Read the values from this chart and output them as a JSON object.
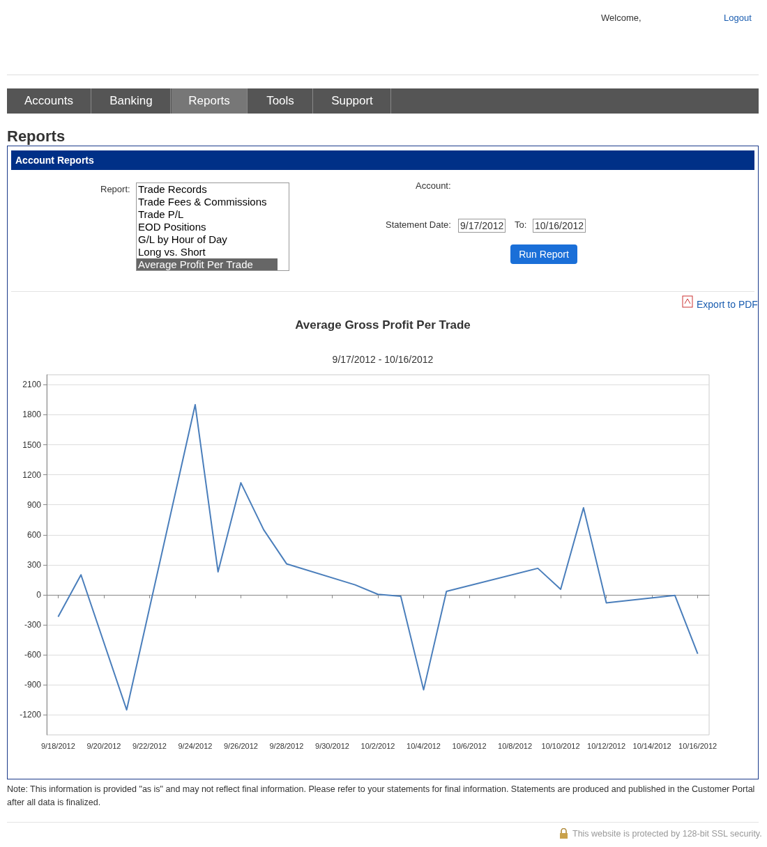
{
  "chart_data": {
    "type": "line",
    "title": "Average Gross Profit Per Trade",
    "subtitle": "9/17/2012 - 10/16/2012",
    "x": [
      "2012-09-18",
      "2012-09-19",
      "2012-09-21",
      "2012-09-24",
      "2012-09-25",
      "2012-09-26",
      "2012-09-27",
      "2012-09-28",
      "2012-10-01",
      "2012-10-02",
      "2012-10-03",
      "2012-10-04",
      "2012-10-05",
      "2012-10-09",
      "2012-10-10",
      "2012-10-11",
      "2012-10-12",
      "2012-10-15",
      "2012-10-16"
    ],
    "series": [
      {
        "color": "#4a7ebb",
        "values": [
          -220,
          200,
          -1150,
          1900,
          230,
          1120,
          650,
          310,
          100,
          5,
          -15,
          -950,
          35,
          265,
          55,
          870,
          -80,
          -5,
          -590
        ]
      }
    ],
    "xlim": [
      "2012-09-17T12:00",
      "2012-10-16T12:00"
    ],
    "xticks": [
      {
        "value": "2012-09-18",
        "label": "9/18/2012"
      },
      {
        "value": "2012-09-20",
        "label": "9/20/2012"
      },
      {
        "value": "2012-09-22",
        "label": "9/22/2012"
      },
      {
        "value": "2012-09-24",
        "label": "9/24/2012"
      },
      {
        "value": "2012-09-26",
        "label": "9/26/2012"
      },
      {
        "value": "2012-09-28",
        "label": "9/28/2012"
      },
      {
        "value": "2012-09-30",
        "label": "9/30/2012"
      },
      {
        "value": "2012-10-02",
        "label": "10/2/2012"
      },
      {
        "value": "2012-10-04",
        "label": "10/4/2012"
      },
      {
        "value": "2012-10-06",
        "label": "10/6/2012"
      },
      {
        "value": "2012-10-08",
        "label": "10/8/2012"
      },
      {
        "value": "2012-10-10",
        "label": "10/10/2012"
      },
      {
        "value": "2012-10-12",
        "label": "10/12/2012"
      },
      {
        "value": "2012-10-14",
        "label": "10/14/2012"
      },
      {
        "value": "2012-10-16",
        "label": "10/16/2012"
      }
    ],
    "ylim": [
      -1400,
      2200
    ],
    "yticks": [
      -1200,
      -900,
      -600,
      -300,
      0,
      300,
      600,
      900,
      1200,
      1500,
      1800,
      2100
    ],
    "grid": "y",
    "marker": "none",
    "line_style": "solid",
    "annotations": [
      "Accounts",
      "Banking",
      "Reports",
      "Tools",
      "Support",
      "Reports",
      "Account Reports",
      "Report:",
      "Trade Records",
      "Trade Fees & Commissions",
      "Trade P/L",
      "EOD Positions",
      "G/L by Hour of Day",
      "Long vs. Short",
      "Average Profit Per Trade",
      "Account:",
      "Statement Date:",
      "9/17/2012",
      "To:",
      "10/16/2012",
      "Run Report",
      "Export to PDF",
      "Welcome,",
      "Logout",
      "Note: This information is provided \"as is\" and may not reflect final information. Please refer to your statements for final information. Statements are produced and published in the Customer Portal after all data is finalized.",
      "This website is protected by 128-bit SSL security."
    ]
  }
}
